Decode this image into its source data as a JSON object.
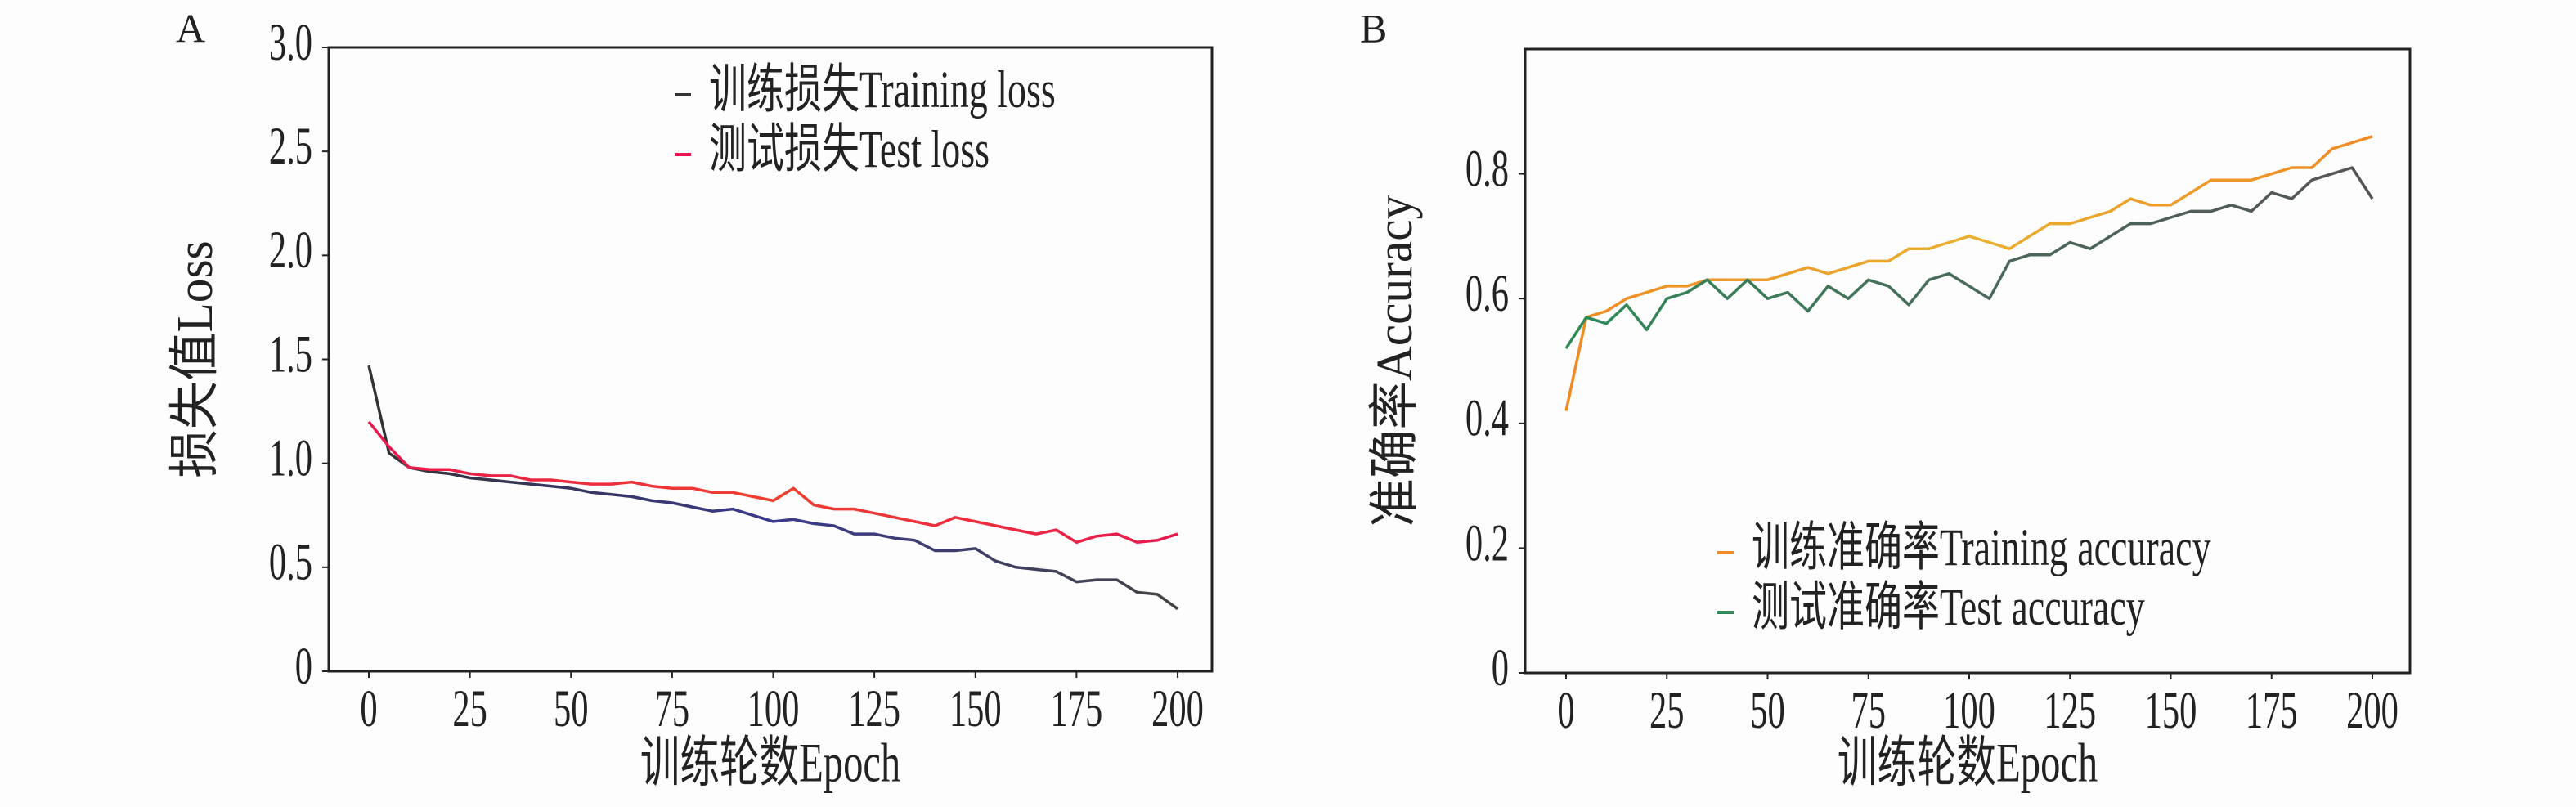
{
  "chart_data": [
    {
      "panel_label": "A",
      "type": "line",
      "xlabel": "训练轮数Epoch",
      "ylabel": "损失值Loss",
      "xlim": [
        0,
        200
      ],
      "ylim": [
        0,
        3.0
      ],
      "xticks": [
        0,
        25,
        50,
        75,
        100,
        125,
        150,
        175,
        200
      ],
      "yticks": [
        0,
        0.5,
        1.0,
        1.5,
        2.0,
        2.5,
        3.0
      ],
      "ytick_labels": [
        "0",
        "0.5",
        "1.0",
        "1.5",
        "2.0",
        "2.5",
        "3.0"
      ],
      "grid": false,
      "legend_position": "top-right",
      "x": [
        0,
        5,
        10,
        15,
        20,
        25,
        30,
        35,
        40,
        45,
        50,
        55,
        60,
        65,
        70,
        75,
        80,
        85,
        90,
        95,
        100,
        105,
        110,
        115,
        120,
        125,
        130,
        135,
        140,
        145,
        150,
        155,
        160,
        165,
        170,
        175,
        180,
        185,
        190,
        195,
        200
      ],
      "series": [
        {
          "name": "训练损失Training loss",
          "colors": [
            "#333333",
            "#3a3a8c",
            "#444444"
          ],
          "values": [
            1.47,
            1.05,
            0.98,
            0.96,
            0.95,
            0.93,
            0.92,
            0.91,
            0.9,
            0.89,
            0.88,
            0.86,
            0.85,
            0.84,
            0.82,
            0.81,
            0.79,
            0.77,
            0.78,
            0.75,
            0.72,
            0.73,
            0.71,
            0.7,
            0.66,
            0.66,
            0.64,
            0.63,
            0.58,
            0.58,
            0.59,
            0.53,
            0.5,
            0.49,
            0.48,
            0.43,
            0.44,
            0.44,
            0.38,
            0.37,
            0.3
          ]
        },
        {
          "name": "测试损失Test loss",
          "colors": [
            "#e8174f",
            "#f04030",
            "#e8174f"
          ],
          "values": [
            1.2,
            1.08,
            0.98,
            0.97,
            0.97,
            0.95,
            0.94,
            0.94,
            0.92,
            0.92,
            0.91,
            0.9,
            0.9,
            0.91,
            0.89,
            0.88,
            0.88,
            0.86,
            0.86,
            0.84,
            0.82,
            0.88,
            0.8,
            0.78,
            0.78,
            0.76,
            0.74,
            0.72,
            0.7,
            0.74,
            0.72,
            0.7,
            0.68,
            0.66,
            0.68,
            0.62,
            0.65,
            0.66,
            0.62,
            0.63,
            0.66
          ]
        }
      ]
    },
    {
      "panel_label": "B",
      "type": "line",
      "xlabel": "训练轮数Epoch",
      "ylabel": "准确率Accuracy",
      "xlim": [
        0,
        200
      ],
      "ylim": [
        0,
        1.0
      ],
      "xticks": [
        0,
        25,
        50,
        75,
        100,
        125,
        150,
        175,
        200
      ],
      "yticks": [
        0,
        0.2,
        0.4,
        0.6,
        0.8
      ],
      "ytick_labels": [
        "0",
        "0.2",
        "0.4",
        "0.6",
        "0.8"
      ],
      "grid": false,
      "legend_position": "bottom-right",
      "x": [
        0,
        5,
        10,
        15,
        20,
        25,
        30,
        35,
        40,
        45,
        50,
        55,
        60,
        65,
        70,
        75,
        80,
        85,
        90,
        95,
        100,
        105,
        110,
        115,
        120,
        125,
        130,
        135,
        140,
        145,
        150,
        155,
        160,
        165,
        170,
        175,
        180,
        185,
        190,
        195,
        200
      ],
      "series": [
        {
          "name": "训练准确率Training accuracy",
          "colors": [
            "#f08a24",
            "#e8b030",
            "#f08a24"
          ],
          "values": [
            0.42,
            0.57,
            0.58,
            0.6,
            0.61,
            0.62,
            0.62,
            0.63,
            0.63,
            0.63,
            0.63,
            0.64,
            0.65,
            0.64,
            0.65,
            0.66,
            0.66,
            0.68,
            0.68,
            0.69,
            0.7,
            0.69,
            0.68,
            0.7,
            0.72,
            0.72,
            0.73,
            0.74,
            0.76,
            0.75,
            0.75,
            0.77,
            0.79,
            0.79,
            0.79,
            0.8,
            0.81,
            0.81,
            0.84,
            0.85,
            0.86
          ]
        },
        {
          "name": "测试准确率Test accuracy",
          "colors": [
            "#2e8b57",
            "#4a6a5a",
            "#555555"
          ],
          "values": [
            0.52,
            0.57,
            0.56,
            0.59,
            0.55,
            0.6,
            0.61,
            0.63,
            0.6,
            0.63,
            0.6,
            0.61,
            0.58,
            0.62,
            0.6,
            0.63,
            0.62,
            0.59,
            0.63,
            0.64,
            0.62,
            0.6,
            0.66,
            0.67,
            0.67,
            0.69,
            0.68,
            0.7,
            0.72,
            0.72,
            0.73,
            0.74,
            0.74,
            0.75,
            0.74,
            0.77,
            0.76,
            0.79,
            0.8,
            0.81,
            0.76
          ]
        }
      ]
    }
  ]
}
